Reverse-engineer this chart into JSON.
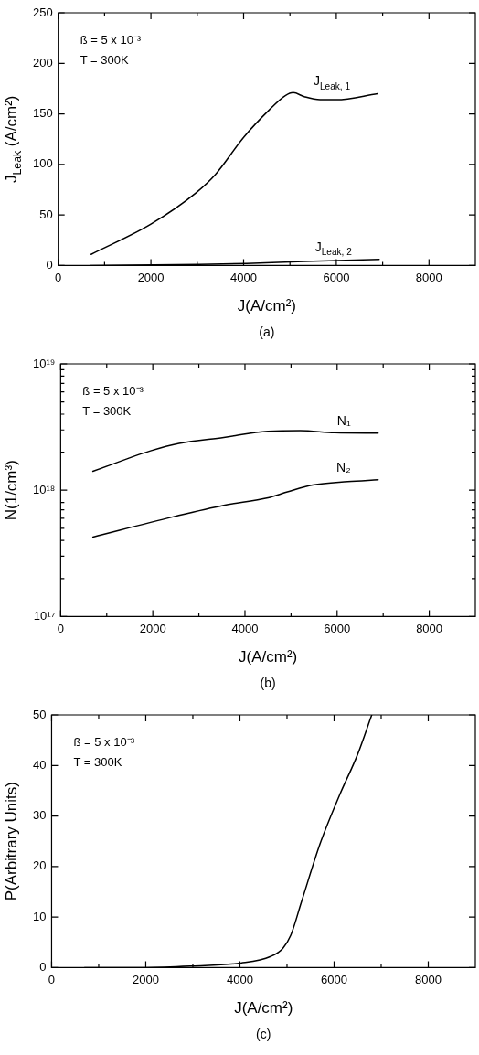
{
  "chart_data": [
    {
      "type": "line",
      "title": "(a)",
      "xlabel": "J(A/cm²)",
      "ylabel": "J$_{Leak}$ (A/cm²)",
      "marker": "none",
      "line_style": "solid",
      "annotations": [
        "ß = 5 x 10⁻³",
        "T = 300K"
      ],
      "xlim": [
        0,
        9000
      ],
      "xticks": [
        0,
        {
          "value": 1000,
          "label": null
        },
        2000,
        {
          "value": 3000,
          "label": null
        },
        4000,
        {
          "value": 5000,
          "label": null
        },
        6000,
        {
          "value": 7000,
          "label": null
        },
        8000
      ],
      "ylim": [
        0,
        250
      ],
      "yticks": [
        0,
        50,
        100,
        150,
        200,
        250
      ],
      "series": [
        {
          "name": "J$_{Leak, 1}$",
          "color": "#000000",
          "x": [
            710,
            2000,
            2975,
            3390,
            4005,
            4555,
            4900,
            5070,
            5310,
            5650,
            6000,
            6890
          ],
          "values": [
            11,
            41,
            72,
            90,
            127,
            154,
            168,
            171,
            167,
            164,
            164,
            170
          ]
        },
        {
          "name": "J$_{Leak, 2}$",
          "color": "#000000",
          "x": [
            700,
            3040,
            4070,
            5310,
            6925
          ],
          "values": [
            0,
            1,
            2,
            4,
            6
          ]
        }
      ]
    },
    {
      "type": "line",
      "title": "(b)",
      "xlabel": "J(A/cm²)",
      "ylabel": "N(1/cm³)",
      "marker": "none",
      "line_style": "solid",
      "log": "y",
      "annotations": [
        "ß = 5 x 10⁻³",
        "T = 300K"
      ],
      "xlim": [
        0,
        9000
      ],
      "xticks": [
        0,
        {
          "value": 1000,
          "label": null
        },
        2000,
        {
          "value": 3000,
          "label": null
        },
        4000,
        {
          "value": 5000,
          "label": null
        },
        6000,
        {
          "value": 7000,
          "label": null
        },
        8000
      ],
      "ylim": [
        1e+17,
        1e+19
      ],
      "yticks": [
        {
          "value": 1e+17,
          "label": "10¹⁷"
        },
        {
          "value": 2e+17,
          "label": null
        },
        {
          "value": 3e+17,
          "label": null
        },
        {
          "value": 4e+17,
          "label": null
        },
        {
          "value": 5e+17,
          "label": null
        },
        {
          "value": 6e+17,
          "label": null
        },
        {
          "value": 7e+17,
          "label": null
        },
        {
          "value": 8e+17,
          "label": null
        },
        {
          "value": 9e+17,
          "label": null
        },
        {
          "value": 1e+18,
          "label": "10¹⁸"
        },
        {
          "value": 2e+18,
          "label": null
        },
        {
          "value": 3e+18,
          "label": null
        },
        {
          "value": 4e+18,
          "label": null
        },
        {
          "value": 5e+18,
          "label": null
        },
        {
          "value": 6e+18,
          "label": null
        },
        {
          "value": 7e+18,
          "label": null
        },
        {
          "value": 8e+18,
          "label": null
        },
        {
          "value": 9e+18,
          "label": null
        },
        {
          "value": 1e+19,
          "label": "10¹⁹"
        }
      ],
      "series": [
        {
          "name": "N₁",
          "color": "#000000",
          "x": [
            700,
            1950,
            2570,
            3540,
            4500,
            5200,
            5950,
            6890
          ],
          "values": [
            1.41e+18,
            2.05e+18,
            2.35e+18,
            2.62e+18,
            2.93e+18,
            2.96e+18,
            2.85e+18,
            2.83e+18
          ]
        },
        {
          "name": "N₂",
          "color": "#000000",
          "x": [
            700,
            2435,
            3540,
            4500,
            4920,
            5470,
            6230,
            6890
          ],
          "values": [
            4.26e+17,
            6.15e+17,
            7.6e+17,
            8.7e+17,
            9.7e+17,
            1.1e+18,
            1.17e+18,
            1.21e+18
          ]
        }
      ]
    },
    {
      "type": "line",
      "title": "(c)",
      "xlabel": "J(A/cm²)",
      "ylabel": "P(Arbitrary Units)",
      "marker": "none",
      "line_style": "solid",
      "annotations": [
        "ß = 5 x 10⁻³",
        "T = 300K"
      ],
      "xlim": [
        0,
        9000
      ],
      "xticks": [
        0,
        {
          "value": 1000,
          "label": null
        },
        2000,
        {
          "value": 3000,
          "label": null
        },
        4000,
        {
          "value": 5000,
          "label": null
        },
        6000,
        {
          "value": 7000,
          "label": null
        },
        8000
      ],
      "ylim": [
        0,
        50
      ],
      "yticks": [
        0,
        10,
        20,
        30,
        40,
        50
      ],
      "series": [
        {
          "color": "#000000",
          "x": [
            700,
            2000,
            2990,
            4020,
            4650,
            4910,
            5080,
            5310,
            5710,
            6110,
            6500,
            6800
          ],
          "values": [
            0,
            0,
            0.3,
            0.9,
            2.2,
            3.8,
            6.4,
            13.1,
            24.7,
            34,
            42.2,
            50
          ]
        }
      ]
    }
  ]
}
